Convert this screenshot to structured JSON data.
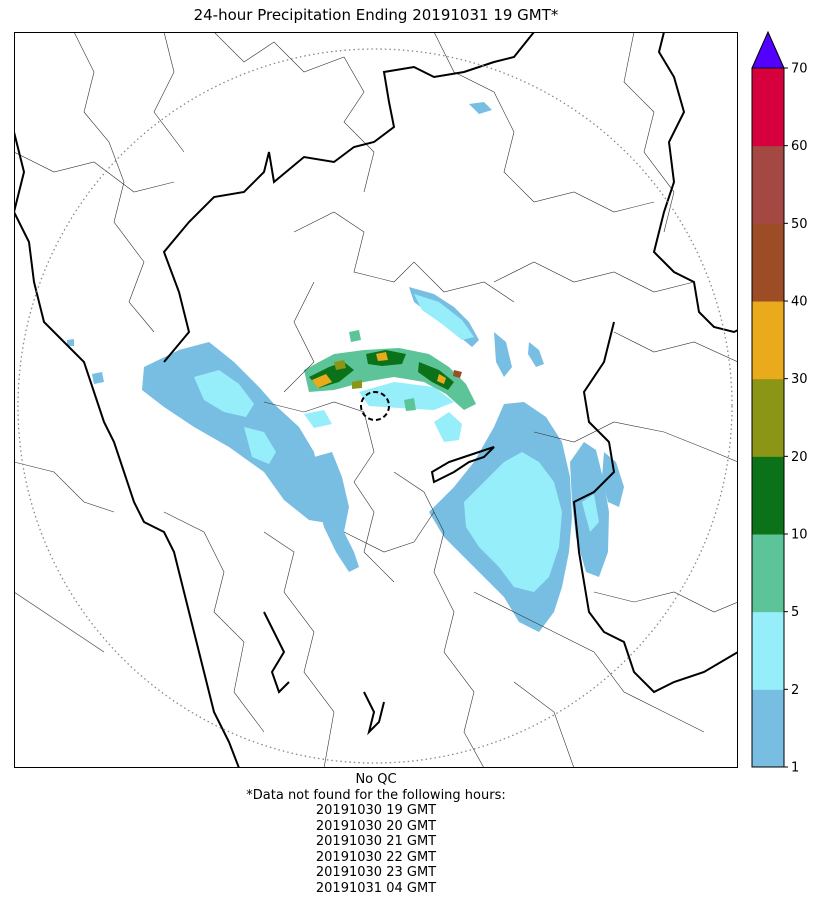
{
  "title": "24-hour Precipitation Ending 20191031 19 GMT*",
  "colorbar": {
    "ticks": [
      "1",
      "2",
      "5",
      "10",
      "20",
      "30",
      "40",
      "50",
      "60",
      "70"
    ],
    "colors": [
      "#78bee3",
      "#96eefb",
      "#5dc499",
      "#0b721a",
      "#8b9617",
      "#e9aa1b",
      "#9c4d26",
      "#a44843",
      "#d7003f"
    ],
    "extend_color": "#5200ff"
  },
  "notes": {
    "qc": "No QC",
    "missing_header": "*Data not found for the following hours:",
    "missing_hours": [
      "20191030 19 GMT",
      "20191030 20 GMT",
      "20191030 21 GMT",
      "20191030 22 GMT",
      "20191030 23 GMT",
      "20191031 04 GMT"
    ]
  },
  "map": {
    "range_ring_color": "#888888",
    "border_color": "#000000"
  }
}
